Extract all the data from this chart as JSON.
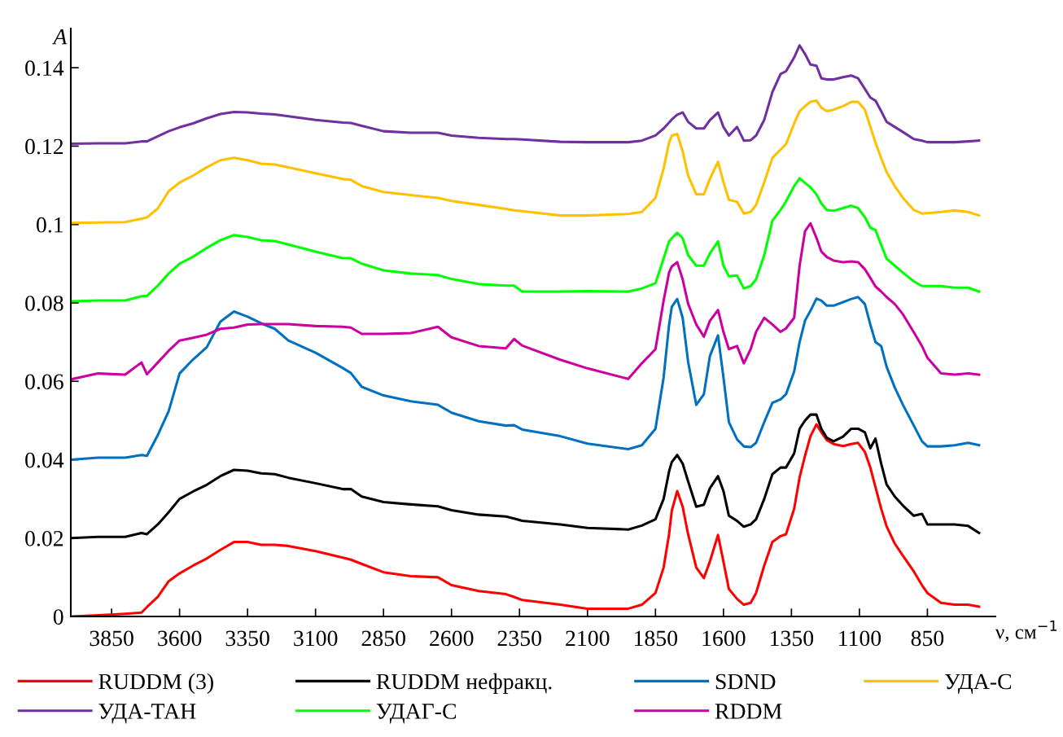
{
  "chart_data": {
    "type": "line",
    "xlabel": "ν, см$^{−1}$",
    "ylabel": "A",
    "x": [
      4000,
      3900,
      3800,
      3740,
      3720,
      3680,
      3640,
      3600,
      3550,
      3500,
      3450,
      3400,
      3350,
      3300,
      3250,
      3200,
      3100,
      3000,
      2970,
      2930,
      2850,
      2750,
      2650,
      2600,
      2500,
      2400,
      2370,
      2340,
      2200,
      2100,
      1950,
      1900,
      1850,
      1820,
      1800,
      1790,
      1770,
      1750,
      1730,
      1700,
      1672,
      1650,
      1620,
      1600,
      1580,
      1550,
      1525,
      1500,
      1480,
      1450,
      1420,
      1390,
      1370,
      1340,
      1320,
      1300,
      1280,
      1258,
      1240,
      1220,
      1195,
      1160,
      1130,
      1105,
      1080,
      1060,
      1041,
      1020,
      1000,
      970,
      940,
      900,
      870,
      850,
      800,
      750,
      700,
      660
    ],
    "xlim": [
      4000,
      600
    ],
    "xticks": [
      3850,
      3600,
      3350,
      3100,
      2850,
      2600,
      2350,
      2100,
      1850,
      1600,
      1350,
      1100,
      850
    ],
    "ylim": [
      0,
      0.15
    ],
    "yticks": [
      0,
      0.02,
      0.04,
      0.06,
      0.08,
      0.1,
      0.12,
      0.14
    ],
    "legend": "bottom",
    "line_style": "solid",
    "series": [
      {
        "name": "RUDDM (3)",
        "color": "#ff0000",
        "values": [
          0,
          0.0003,
          0.0007,
          0.001,
          0.0024,
          0.005,
          0.009,
          0.011,
          0.013,
          0.0148,
          0.017,
          0.019,
          0.019,
          0.0183,
          0.0183,
          0.018,
          0.0167,
          0.015,
          0.0145,
          0.0134,
          0.0113,
          0.0103,
          0.01,
          0.008,
          0.0065,
          0.0057,
          0.005,
          0.0042,
          0.003,
          0.002,
          0.002,
          0.003,
          0.006,
          0.0125,
          0.021,
          0.027,
          0.032,
          0.028,
          0.021,
          0.0125,
          0.0098,
          0.014,
          0.0208,
          0.014,
          0.007,
          0.0045,
          0.003,
          0.0035,
          0.006,
          0.013,
          0.019,
          0.0205,
          0.021,
          0.0275,
          0.0355,
          0.041,
          0.046,
          0.049,
          0.047,
          0.045,
          0.044,
          0.0435,
          0.044,
          0.0443,
          0.042,
          0.038,
          0.033,
          0.0275,
          0.023,
          0.0186,
          0.0155,
          0.0115,
          0.008,
          0.006,
          0.0035,
          0.003,
          0.003,
          0.0025
        ]
      },
      {
        "name": "RUDDM нефракц.",
        "color": "#000000",
        "values": [
          0.02,
          0.0203,
          0.0203,
          0.0213,
          0.021,
          0.0235,
          0.0266,
          0.03,
          0.0319,
          0.0336,
          0.0358,
          0.0374,
          0.0372,
          0.0365,
          0.0363,
          0.0354,
          0.034,
          0.0325,
          0.0325,
          0.0306,
          0.0292,
          0.0286,
          0.0281,
          0.0271,
          0.026,
          0.0255,
          0.025,
          0.0244,
          0.0235,
          0.0226,
          0.0222,
          0.0232,
          0.0248,
          0.03,
          0.037,
          0.0394,
          0.0412,
          0.039,
          0.0345,
          0.028,
          0.0285,
          0.0327,
          0.0358,
          0.032,
          0.0257,
          0.0244,
          0.0229,
          0.0235,
          0.0248,
          0.03,
          0.0363,
          0.038,
          0.038,
          0.0416,
          0.0479,
          0.05,
          0.0515,
          0.0515,
          0.0479,
          0.0456,
          0.0447,
          0.0459,
          0.0479,
          0.0479,
          0.047,
          0.0429,
          0.0454,
          0.039,
          0.0337,
          0.0306,
          0.0283,
          0.0257,
          0.0262,
          0.0235,
          0.0235,
          0.0235,
          0.0231,
          0.0213
        ]
      },
      {
        "name": "SDND",
        "color": "#0070c0",
        "values": [
          0.04,
          0.0405,
          0.0405,
          0.0412,
          0.041,
          0.0463,
          0.0524,
          0.062,
          0.0656,
          0.0687,
          0.0752,
          0.0778,
          0.0765,
          0.0748,
          0.0734,
          0.0704,
          0.0673,
          0.0634,
          0.0621,
          0.0586,
          0.0564,
          0.0549,
          0.054,
          0.052,
          0.0498,
          0.0487,
          0.0488,
          0.0477,
          0.046,
          0.0441,
          0.0427,
          0.0437,
          0.0479,
          0.061,
          0.0744,
          0.079,
          0.081,
          0.0762,
          0.065,
          0.054,
          0.0567,
          0.0664,
          0.0717,
          0.061,
          0.0496,
          0.0452,
          0.0434,
          0.0432,
          0.0443,
          0.0496,
          0.0545,
          0.0554,
          0.0567,
          0.0625,
          0.07,
          0.0755,
          0.078,
          0.0811,
          0.0806,
          0.0793,
          0.0793,
          0.0802,
          0.081,
          0.0815,
          0.0797,
          0.0745,
          0.07,
          0.069,
          0.0637,
          0.0584,
          0.054,
          0.0487,
          0.0447,
          0.0434,
          0.0434,
          0.0437,
          0.0443,
          0.0437
        ]
      },
      {
        "name": "УДА-С",
        "color": "#ffc000",
        "values": [
          0.1004,
          0.1005,
          0.1006,
          0.1015,
          0.1018,
          0.1041,
          0.1085,
          0.1107,
          0.1125,
          0.1146,
          0.1164,
          0.117,
          0.1164,
          0.1155,
          0.1153,
          0.1146,
          0.1131,
          0.1116,
          0.1114,
          0.1098,
          0.1083,
          0.1075,
          0.1068,
          0.106,
          0.105,
          0.104,
          0.1036,
          0.1034,
          0.1023,
          0.1023,
          0.1027,
          0.1032,
          0.1068,
          0.1143,
          0.1209,
          0.1227,
          0.1231,
          0.1187,
          0.1125,
          0.1077,
          0.1077,
          0.1116,
          0.116,
          0.1108,
          0.1063,
          0.1058,
          0.1028,
          0.1032,
          0.105,
          0.1108,
          0.117,
          0.1191,
          0.1205,
          0.1258,
          0.1289,
          0.1302,
          0.1313,
          0.1316,
          0.1298,
          0.1289,
          0.1293,
          0.1302,
          0.1313,
          0.1313,
          0.1293,
          0.125,
          0.1209,
          0.1169,
          0.1134,
          0.1098,
          0.1068,
          0.1037,
          0.1028,
          0.1029,
          0.1032,
          0.1036,
          0.1032,
          0.1023
        ]
      },
      {
        "name": "УДА-ТАН",
        "color": "#7030a0",
        "values": [
          0.1206,
          0.1207,
          0.1207,
          0.1212,
          0.1212,
          0.1225,
          0.1238,
          0.1248,
          0.1258,
          0.1271,
          0.1282,
          0.1287,
          0.1286,
          0.1283,
          0.1281,
          0.1276,
          0.1267,
          0.126,
          0.1259,
          0.1252,
          0.1238,
          0.1234,
          0.1234,
          0.1227,
          0.1221,
          0.1218,
          0.1218,
          0.1217,
          0.1211,
          0.121,
          0.121,
          0.1214,
          0.1227,
          0.1245,
          0.126,
          0.1268,
          0.128,
          0.1286,
          0.1262,
          0.1245,
          0.1245,
          0.1266,
          0.1286,
          0.1249,
          0.1227,
          0.1249,
          0.1214,
          0.1215,
          0.1227,
          0.1267,
          0.1338,
          0.1384,
          0.1391,
          0.1426,
          0.1457,
          0.1435,
          0.1408,
          0.1405,
          0.1373,
          0.137,
          0.137,
          0.1376,
          0.138,
          0.1373,
          0.1346,
          0.1324,
          0.1316,
          0.1289,
          0.1262,
          0.1249,
          0.1236,
          0.1218,
          0.1214,
          0.121,
          0.121,
          0.121,
          0.1212,
          0.1214
        ]
      },
      {
        "name": "УДАГ-С",
        "color": "#00ff00",
        "values": [
          0.0804,
          0.0806,
          0.0806,
          0.0817,
          0.0818,
          0.0844,
          0.0875,
          0.09,
          0.0918,
          0.094,
          0.096,
          0.0973,
          0.0968,
          0.096,
          0.0958,
          0.0949,
          0.0931,
          0.0914,
          0.0914,
          0.09,
          0.0883,
          0.0875,
          0.0871,
          0.0861,
          0.0848,
          0.0844,
          0.0844,
          0.0829,
          0.0829,
          0.083,
          0.0829,
          0.0837,
          0.085,
          0.0913,
          0.0957,
          0.0965,
          0.0979,
          0.0965,
          0.0922,
          0.0895,
          0.0895,
          0.0926,
          0.0957,
          0.0895,
          0.0868,
          0.087,
          0.0837,
          0.0843,
          0.086,
          0.0922,
          0.101,
          0.1037,
          0.1059,
          0.1098,
          0.1118,
          0.1106,
          0.1095,
          0.1077,
          0.1054,
          0.1037,
          0.1035,
          0.1042,
          0.1048,
          0.1042,
          0.1019,
          0.0992,
          0.0986,
          0.0948,
          0.0913,
          0.0895,
          0.0877,
          0.0855,
          0.0843,
          0.0843,
          0.0843,
          0.0839,
          0.0839,
          0.0829
        ]
      },
      {
        "name": "RDDM",
        "color": "#cc00a0",
        "values": [
          0.0605,
          0.062,
          0.0617,
          0.0648,
          0.0618,
          0.0648,
          0.0678,
          0.0704,
          0.0711,
          0.0719,
          0.0734,
          0.0737,
          0.0745,
          0.0746,
          0.0746,
          0.0746,
          0.0741,
          0.0739,
          0.0737,
          0.0721,
          0.0721,
          0.0723,
          0.0739,
          0.0712,
          0.069,
          0.0684,
          0.0708,
          0.0691,
          0.0655,
          0.0633,
          0.0606,
          0.0646,
          0.0682,
          0.0806,
          0.0877,
          0.0893,
          0.0904,
          0.086,
          0.0798,
          0.0745,
          0.0714,
          0.0754,
          0.0782,
          0.0726,
          0.0682,
          0.069,
          0.0646,
          0.0682,
          0.0726,
          0.0762,
          0.0745,
          0.0726,
          0.0735,
          0.0762,
          0.0895,
          0.0983,
          0.1003,
          0.0966,
          0.0931,
          0.0917,
          0.0908,
          0.0904,
          0.0906,
          0.0904,
          0.0886,
          0.0864,
          0.0842,
          0.0829,
          0.0815,
          0.0797,
          0.0771,
          0.0725,
          0.069,
          0.066,
          0.062,
          0.0617,
          0.062,
          0.0617
        ]
      }
    ]
  }
}
